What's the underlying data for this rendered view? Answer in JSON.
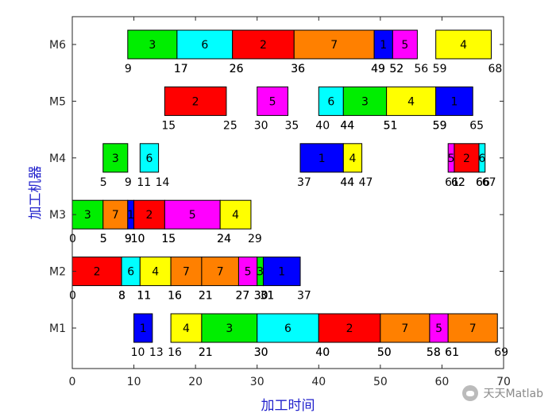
{
  "chart_data": {
    "type": "gantt",
    "xlabel": "加工时间",
    "ylabel": "加工机器",
    "xlim": [
      0,
      70
    ],
    "xticks": [
      0,
      10,
      20,
      30,
      40,
      50,
      60,
      70
    ],
    "machines": [
      "M1",
      "M2",
      "M3",
      "M4",
      "M5",
      "M6"
    ],
    "job_colors": {
      "1": "#0000ff",
      "2": "#ff0000",
      "3": "#00ee00",
      "4": "#ffff00",
      "5": "#ff00ff",
      "6": "#00ffff",
      "7": "#ff8000"
    },
    "tasks": [
      {
        "machine": "M1",
        "job": "1",
        "start": 10,
        "end": 13
      },
      {
        "machine": "M1",
        "job": "4",
        "start": 16,
        "end": 21
      },
      {
        "machine": "M1",
        "job": "3",
        "start": 21,
        "end": 30
      },
      {
        "machine": "M1",
        "job": "6",
        "start": 30,
        "end": 40
      },
      {
        "machine": "M1",
        "job": "2",
        "start": 40,
        "end": 50
      },
      {
        "machine": "M1",
        "job": "7",
        "start": 50,
        "end": 58
      },
      {
        "machine": "M1",
        "job": "5",
        "start": 58,
        "end": 61
      },
      {
        "machine": "M1",
        "job": "7",
        "start": 61,
        "end": 69
      },
      {
        "machine": "M2",
        "job": "2",
        "start": 0,
        "end": 8
      },
      {
        "machine": "M2",
        "job": "6",
        "start": 8,
        "end": 11
      },
      {
        "machine": "M2",
        "job": "4",
        "start": 11,
        "end": 16
      },
      {
        "machine": "M2",
        "job": "7",
        "start": 16,
        "end": 21
      },
      {
        "machine": "M2",
        "job": "7",
        "start": 21,
        "end": 27
      },
      {
        "machine": "M2",
        "job": "5",
        "start": 27,
        "end": 30
      },
      {
        "machine": "M2",
        "job": "3",
        "start": 30,
        "end": 31
      },
      {
        "machine": "M2",
        "job": "1",
        "start": 31,
        "end": 37
      },
      {
        "machine": "M3",
        "job": "3",
        "start": 0,
        "end": 5
      },
      {
        "machine": "M3",
        "job": "7",
        "start": 5,
        "end": 9
      },
      {
        "machine": "M3",
        "job": "1",
        "start": 9,
        "end": 10
      },
      {
        "machine": "M3",
        "job": "2",
        "start": 10,
        "end": 15
      },
      {
        "machine": "M3",
        "job": "5",
        "start": 15,
        "end": 24
      },
      {
        "machine": "M3",
        "job": "4",
        "start": 24,
        "end": 29
      },
      {
        "machine": "M4",
        "job": "3",
        "start": 5,
        "end": 9
      },
      {
        "machine": "M4",
        "job": "6",
        "start": 11,
        "end": 14
      },
      {
        "machine": "M4",
        "job": "1",
        "start": 37,
        "end": 44
      },
      {
        "machine": "M4",
        "job": "4",
        "start": 44,
        "end": 47
      },
      {
        "machine": "M4",
        "job": "5",
        "start": 61,
        "end": 62
      },
      {
        "machine": "M4",
        "job": "2",
        "start": 62,
        "end": 66
      },
      {
        "machine": "M4",
        "job": "6",
        "start": 66,
        "end": 67
      },
      {
        "machine": "M5",
        "job": "2",
        "start": 15,
        "end": 25
      },
      {
        "machine": "M5",
        "job": "5",
        "start": 30,
        "end": 35
      },
      {
        "machine": "M5",
        "job": "6",
        "start": 40,
        "end": 44
      },
      {
        "machine": "M5",
        "job": "3",
        "start": 44,
        "end": 51
      },
      {
        "machine": "M5",
        "job": "4",
        "start": 51,
        "end": 59
      },
      {
        "machine": "M5",
        "job": "1",
        "start": 59,
        "end": 65
      },
      {
        "machine": "M6",
        "job": "3",
        "start": 9,
        "end": 17
      },
      {
        "machine": "M6",
        "job": "6",
        "start": 17,
        "end": 26
      },
      {
        "machine": "M6",
        "job": "2",
        "start": 26,
        "end": 36
      },
      {
        "machine": "M6",
        "job": "7",
        "start": 36,
        "end": 49
      },
      {
        "machine": "M6",
        "job": "1",
        "start": 49,
        "end": 52
      },
      {
        "machine": "M6",
        "job": "5",
        "start": 52,
        "end": 56
      },
      {
        "machine": "M6",
        "job": "4",
        "start": 59,
        "end": 68
      }
    ]
  },
  "watermark": {
    "text": "天天Matlab",
    "icon": "wechat-icon"
  }
}
